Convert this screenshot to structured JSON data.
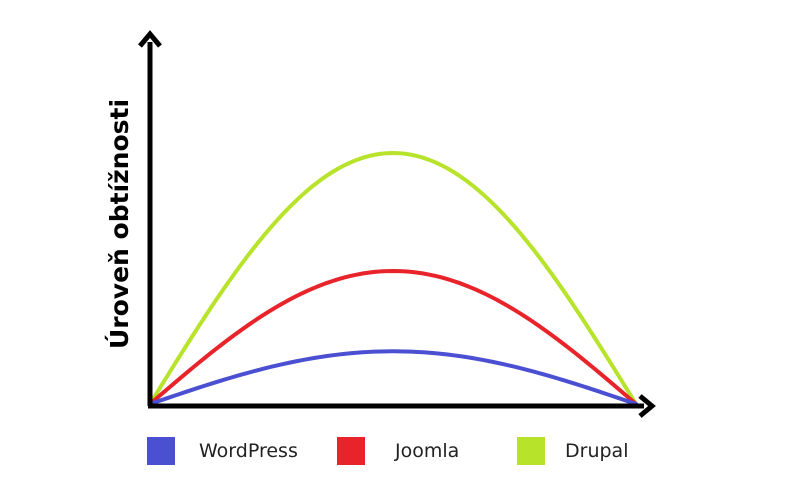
{
  "chart_data": {
    "type": "line",
    "title": "",
    "xlabel": "",
    "ylabel": "Úroveň obtížnosti",
    "x": [
      0,
      0.5,
      1
    ],
    "ylim": [
      0,
      1
    ],
    "xlim": [
      0,
      1
    ],
    "grid": false,
    "legend_position": "bottom",
    "series": [
      {
        "name": "WordPress",
        "color": "#4b4fd1",
        "peak": 0.21
      },
      {
        "name": "Joomla",
        "color": "#e8232a",
        "peak": 0.53
      },
      {
        "name": "Drupal",
        "color": "#b7e32a",
        "peak": 1.0
      }
    ]
  }
}
